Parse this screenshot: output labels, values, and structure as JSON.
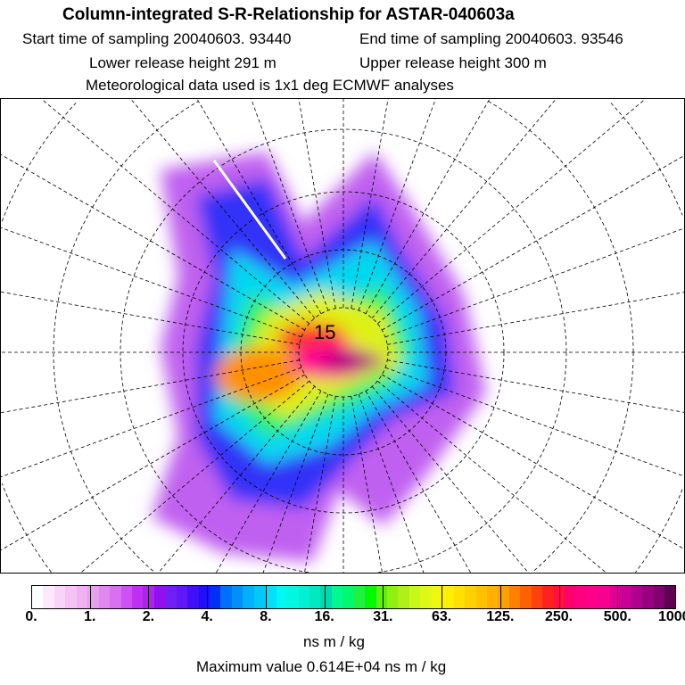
{
  "header": {
    "title": "Column-integrated S-R-Relationship for ASTAR-040603a",
    "start_time": "Start time of sampling 20040603. 93440",
    "end_time": "End time of sampling 20040603. 93546",
    "lower_height": "Lower release height  291 m",
    "upper_height": "Upper release height  300 m",
    "met_data": "Meteorological data used is 1x1 deg ECMWF analyses"
  },
  "map": {
    "projection": "north polar stereographic",
    "center_label": "15"
  },
  "colorbar": {
    "ticks": [
      "0.",
      "1.",
      "2.",
      "4.",
      "8.",
      "16.",
      "31.",
      "63.",
      "125.",
      "250.",
      "500.",
      "1000."
    ],
    "units": "ns m / kg",
    "colors": [
      "#ffffff",
      "#fde8fb",
      "#fad4f8",
      "#f6c2f5",
      "#f0b0f2",
      "#e8a0ee",
      "#e088f0",
      "#d870f2",
      "#cc50f4",
      "#c030f4",
      "#b020f0",
      "#9010f0",
      "#7020f4",
      "#6018f8",
      "#4010f8",
      "#2010f8",
      "#0030f8",
      "#0070f8",
      "#0090f8",
      "#00b0f8",
      "#00c8f8",
      "#00e0f8",
      "#00f8f0",
      "#00f8e0",
      "#00f0d0",
      "#00e8c0",
      "#00d8b0",
      "#00f890",
      "#00f870",
      "#20f040",
      "#00f800",
      "#60f010",
      "#90f010",
      "#b0f018",
      "#c8f818",
      "#e0f818",
      "#f0f810",
      "#fff000",
      "#ffe000",
      "#ffd000",
      "#ffc000",
      "#ffb000",
      "#ffa000",
      "#ff8000",
      "#ff6000",
      "#ff4010",
      "#ff2020",
      "#ff1040",
      "#ff0070",
      "#ff0080",
      "#ff0088",
      "#f80090",
      "#e00098",
      "#c80098",
      "#b00090",
      "#980080",
      "#800070",
      "#600050"
    ],
    "max_value": "Maximum value  0.614E+04 ns m / kg"
  }
}
